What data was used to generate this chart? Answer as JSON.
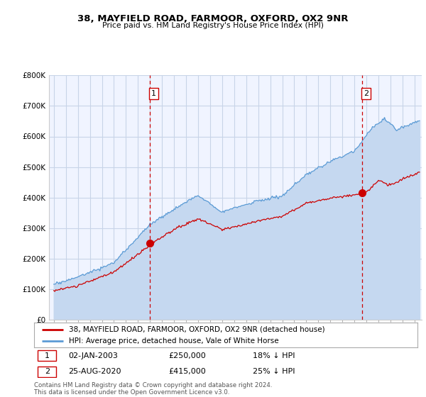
{
  "title": "38, MAYFIELD ROAD, FARMOOR, OXFORD, OX2 9NR",
  "subtitle": "Price paid vs. HM Land Registry's House Price Index (HPI)",
  "background_color": "#ffffff",
  "plot_bg_color": "#f0f4ff",
  "grid_color": "#c8d4e8",
  "sale1_x": 2003.0,
  "sale1_price": 250000,
  "sale2_x": 2020.65,
  "sale2_price": 415000,
  "hpi_color": "#5b9bd5",
  "hpi_fill_color": "#c5d8f0",
  "price_color": "#cc0000",
  "dashed_color": "#cc0000",
  "legend_label_price": "38, MAYFIELD ROAD, FARMOOR, OXFORD, OX2 9NR (detached house)",
  "legend_label_hpi": "HPI: Average price, detached house, Vale of White Horse",
  "footer": "Contains HM Land Registry data © Crown copyright and database right 2024.\nThis data is licensed under the Open Government Licence v3.0.",
  "ylim": [
    0,
    800000
  ],
  "yticks": [
    0,
    100000,
    200000,
    300000,
    400000,
    500000,
    600000,
    700000,
    800000
  ],
  "ytick_labels": [
    "£0",
    "£100K",
    "£200K",
    "£300K",
    "£400K",
    "£500K",
    "£600K",
    "£700K",
    "£800K"
  ],
  "xlim_start": 1994.6,
  "xlim_end": 2025.6
}
